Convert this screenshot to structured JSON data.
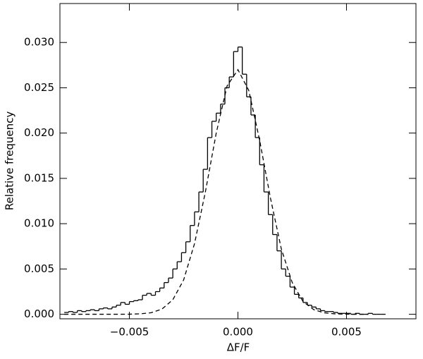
{
  "chart_data": {
    "type": "histogram",
    "x_label": "ΔF/F",
    "y_label": "Relative frequency",
    "color": "#000000",
    "xlim": [
      -0.0082,
      0.0082
    ],
    "ylim": [
      -0.0005,
      0.0343
    ],
    "xticks": [
      {
        "value": -0.005,
        "label": "−0.005"
      },
      {
        "value": 0,
        "label": "0.000"
      },
      {
        "value": 0.005,
        "label": "0.005"
      }
    ],
    "yticks": [
      {
        "value": 0,
        "label": "0.000"
      },
      {
        "value": 0.005,
        "label": "0.005"
      },
      {
        "value": 0.01,
        "label": "0.010"
      },
      {
        "value": 0.015,
        "label": "0.015"
      },
      {
        "value": 0.02,
        "label": "0.020"
      },
      {
        "value": 0.025,
        "label": "0.025"
      },
      {
        "value": 0.03,
        "label": "0.030"
      }
    ],
    "bins": [
      -0.008,
      -0.0078,
      -0.0076,
      -0.0074,
      -0.0072,
      -0.007,
      -0.0068,
      -0.0066,
      -0.0064,
      -0.0062,
      -0.006,
      -0.0058,
      -0.0056,
      -0.0054,
      -0.0052,
      -0.005,
      -0.0048,
      -0.0046,
      -0.0044,
      -0.0042,
      -0.004,
      -0.0038,
      -0.0036,
      -0.0034,
      -0.0032,
      -0.003,
      -0.0028,
      -0.0026,
      -0.0024,
      -0.0022,
      -0.002,
      -0.0018,
      -0.0016,
      -0.0014,
      -0.0012,
      -0.001,
      -0.0008,
      -0.0006,
      -0.0004,
      -0.0002,
      0,
      0.0002,
      0.0004,
      0.0006,
      0.0008,
      0.001,
      0.0012,
      0.0014,
      0.0016,
      0.0018,
      0.002,
      0.0022,
      0.0024,
      0.0026,
      0.0028,
      0.003,
      0.0032,
      0.0034,
      0.0036,
      0.0038,
      0.004,
      0.0042,
      0.0044,
      0.0046,
      0.0048,
      0.005,
      0.0052,
      0.0054,
      0.0056,
      0.0058,
      0.006,
      0.0062,
      0.0064,
      0.0066,
      0.0068
    ],
    "values": [
      0.0002,
      0.0003,
      0.0002,
      0.0004,
      0.0003,
      0.0004,
      0.0005,
      0.0004,
      0.0006,
      0.0007,
      0.0006,
      0.0008,
      0.001,
      0.0013,
      0.0011,
      0.0014,
      0.0015,
      0.0016,
      0.0021,
      0.0023,
      0.0021,
      0.0025,
      0.0029,
      0.0035,
      0.004,
      0.005,
      0.0058,
      0.0068,
      0.008,
      0.0098,
      0.0113,
      0.0135,
      0.016,
      0.0195,
      0.0213,
      0.0222,
      0.0232,
      0.025,
      0.0262,
      0.029,
      0.0295,
      0.0265,
      0.024,
      0.022,
      0.0195,
      0.0165,
      0.0135,
      0.011,
      0.0088,
      0.007,
      0.005,
      0.0042,
      0.003,
      0.0022,
      0.0018,
      0.0013,
      0.001,
      0.0008,
      0.0006,
      0.0004,
      0.0003,
      0.0003,
      0.0002,
      0.0001,
      0.0001,
      0.0001,
      0,
      0.0001,
      0,
      0,
      0.0001,
      0,
      0,
      0
    ],
    "overlay": {
      "type": "line",
      "dashed": true,
      "x": [
        -0.008,
        -0.0075,
        -0.007,
        -0.0065,
        -0.006,
        -0.0055,
        -0.005,
        -0.0045,
        -0.004,
        -0.0035,
        -0.003,
        -0.0025,
        -0.002,
        -0.0015,
        -0.001,
        -0.0005,
        0,
        0.0005,
        0.001,
        0.0015,
        0.002,
        0.0025,
        0.003,
        0.0035,
        0.004,
        0.0045,
        0.005,
        0.0055,
        0.006
      ],
      "values": [
        0,
        0,
        0,
        0,
        0,
        0,
        1e-05,
        5e-05,
        0.00017,
        0.00057,
        0.0016,
        0.0038,
        0.0078,
        0.0135,
        0.02,
        0.0252,
        0.027,
        0.0247,
        0.0192,
        0.0128,
        0.0072,
        0.0035,
        0.0014,
        0.0005,
        0.00015,
        4e-05,
        1e-05,
        0,
        0
      ]
    }
  }
}
